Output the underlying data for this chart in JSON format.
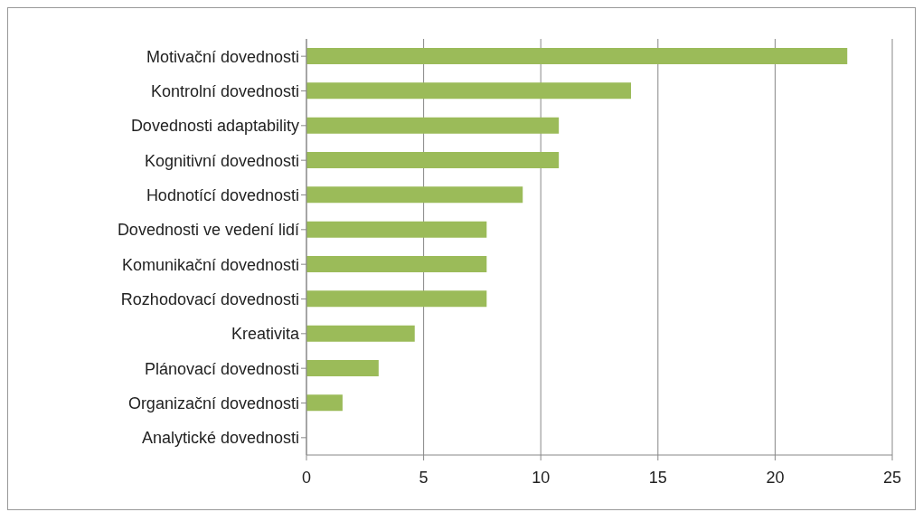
{
  "chart_data": {
    "type": "bar",
    "orientation": "horizontal",
    "categories": [
      "Motivační dovednosti",
      "Kontrolní dovednosti",
      "Dovednosti adaptability",
      "Kognitivní dovednosti",
      "Hodnotící dovednosti",
      "Dovednosti ve vedení lidí",
      "Komunikační dovednosti",
      "Rozhodovací dovednosti",
      "Kreativita",
      "Plánovací dovednosti",
      "Organizační dovednosti",
      "Analytické dovednosti"
    ],
    "values": [
      23.08,
      13.85,
      10.77,
      10.77,
      9.23,
      7.69,
      7.69,
      7.69,
      4.62,
      3.08,
      1.54,
      0
    ],
    "color": "#9bbb59",
    "xlim": [
      0,
      25
    ],
    "xticks": [
      0,
      5,
      10,
      15,
      20,
      25
    ],
    "grid": "x"
  }
}
